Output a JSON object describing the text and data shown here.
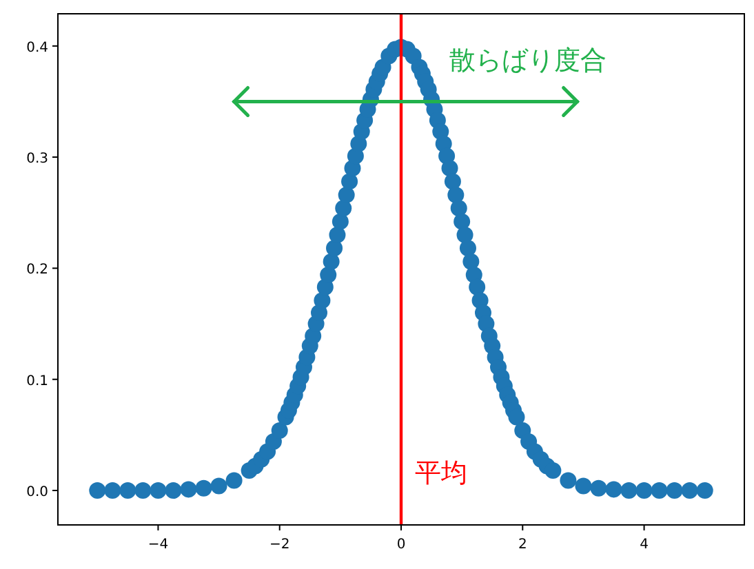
{
  "chart_data": {
    "type": "scatter",
    "x": [
      -5,
      -4.75,
      -4.5,
      -4.25,
      -4,
      -3.75,
      -3.5,
      -3.25,
      -3,
      -2.75,
      -2.5,
      -2.4,
      -2.3,
      -2.2,
      -2.1,
      -2,
      -1.9,
      -1.85,
      -1.8,
      -1.75,
      -1.7,
      -1.65,
      -1.6,
      -1.55,
      -1.5,
      -1.45,
      -1.4,
      -1.35,
      -1.3,
      -1.25,
      -1.2,
      -1.15,
      -1.1,
      -1.05,
      -1,
      -0.95,
      -0.9,
      -0.85,
      -0.8,
      -0.75,
      -0.7,
      -0.65,
      -0.6,
      -0.55,
      -0.5,
      -0.45,
      -0.4,
      -0.35,
      -0.3,
      -0.2,
      -0.1,
      0,
      0.1,
      0.2,
      0.3,
      0.35,
      0.4,
      0.45,
      0.5,
      0.55,
      0.6,
      0.65,
      0.7,
      0.75,
      0.8,
      0.85,
      0.9,
      0.95,
      1,
      1.05,
      1.1,
      1.15,
      1.2,
      1.25,
      1.3,
      1.35,
      1.4,
      1.45,
      1.5,
      1.55,
      1.6,
      1.65,
      1.7,
      1.75,
      1.8,
      1.85,
      1.9,
      2,
      2.1,
      2.2,
      2.3,
      2.4,
      2.5,
      2.75,
      3,
      3.25,
      3.5,
      3.75,
      4,
      4.25,
      4.5,
      4.75,
      5
    ],
    "series": [
      {
        "color": "#1f77b4",
        "values": [
          0,
          0,
          0,
          0,
          0,
          0,
          0.001,
          0.002,
          0.004,
          0.009,
          0.018,
          0.022,
          0.028,
          0.035,
          0.044,
          0.054,
          0.066,
          0.072,
          0.079,
          0.086,
          0.094,
          0.102,
          0.111,
          0.12,
          0.13,
          0.139,
          0.15,
          0.16,
          0.171,
          0.183,
          0.194,
          0.206,
          0.218,
          0.23,
          0.242,
          0.254,
          0.266,
          0.278,
          0.29,
          0.301,
          0.312,
          0.323,
          0.333,
          0.343,
          0.352,
          0.361,
          0.368,
          0.375,
          0.381,
          0.391,
          0.397,
          0.399,
          0.397,
          0.391,
          0.381,
          0.375,
          0.368,
          0.361,
          0.352,
          0.343,
          0.333,
          0.323,
          0.312,
          0.301,
          0.29,
          0.278,
          0.266,
          0.254,
          0.242,
          0.23,
          0.218,
          0.206,
          0.194,
          0.183,
          0.171,
          0.16,
          0.15,
          0.139,
          0.13,
          0.12,
          0.111,
          0.102,
          0.094,
          0.086,
          0.079,
          0.072,
          0.066,
          0.054,
          0.044,
          0.035,
          0.028,
          0.022,
          0.018,
          0.009,
          0.004,
          0.002,
          0.001,
          0,
          0,
          0,
          0,
          0,
          0
        ]
      }
    ],
    "marker": "circle",
    "xlim": [
      -5.65,
      5.65
    ],
    "ylim": [
      -0.031,
      0.429
    ],
    "xticks": [
      {
        "value": -4,
        "label": "−4"
      },
      {
        "value": -2,
        "label": "−2"
      },
      0,
      2,
      4
    ],
    "yticks": [
      {
        "value": 0,
        "label": "0.0"
      },
      0.1,
      0.2,
      0.3,
      0.4
    ],
    "ref_lines": [
      {
        "axis": "x",
        "value": 0,
        "label": "平均",
        "color": "#ff0000"
      }
    ],
    "annotations": [
      "散らばり度合"
    ]
  }
}
